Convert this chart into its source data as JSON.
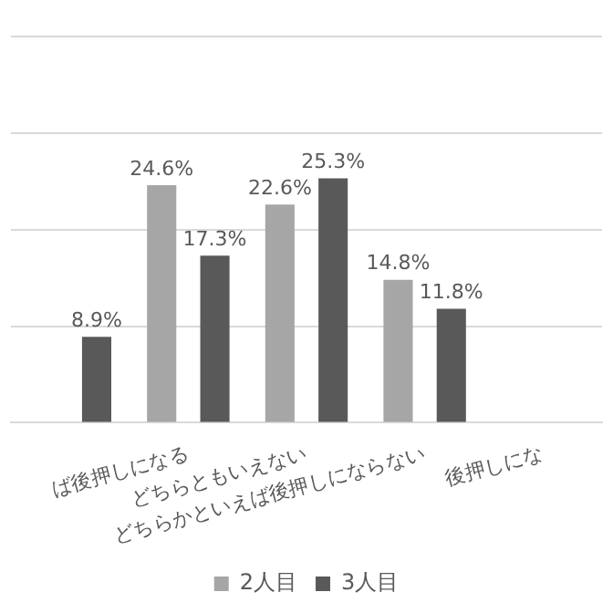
{
  "chart_data": {
    "type": "bar",
    "categories": [
      null,
      "ば後押しになる",
      "どちらともいえない",
      "どちらかといえば後押しにならない",
      "後押しにな"
    ],
    "series": [
      {
        "name": "2人目",
        "color": "#a6a6a6",
        "values": [
          null,
          24.6,
          22.6,
          14.8,
          null
        ],
        "value_labels": [
          null,
          "24.6%",
          "22.6%",
          "14.8%",
          null
        ]
      },
      {
        "name": "3人目",
        "color": "#595959",
        "values": [
          8.9,
          17.3,
          25.3,
          11.8,
          null
        ],
        "value_labels": [
          "8.9%",
          "17.3%",
          "25.3%",
          "11.8%",
          null
        ]
      }
    ],
    "ylim": [
      0,
      40
    ],
    "yticks": [
      {
        "value": 0,
        "label": null
      },
      {
        "value": 10,
        "label": null
      },
      {
        "value": 20,
        "label": null
      },
      {
        "value": 30,
        "label": null
      },
      {
        "value": 40,
        "label": null
      }
    ],
    "tick_labels": "x",
    "grid": "y",
    "legend": "bottom"
  }
}
